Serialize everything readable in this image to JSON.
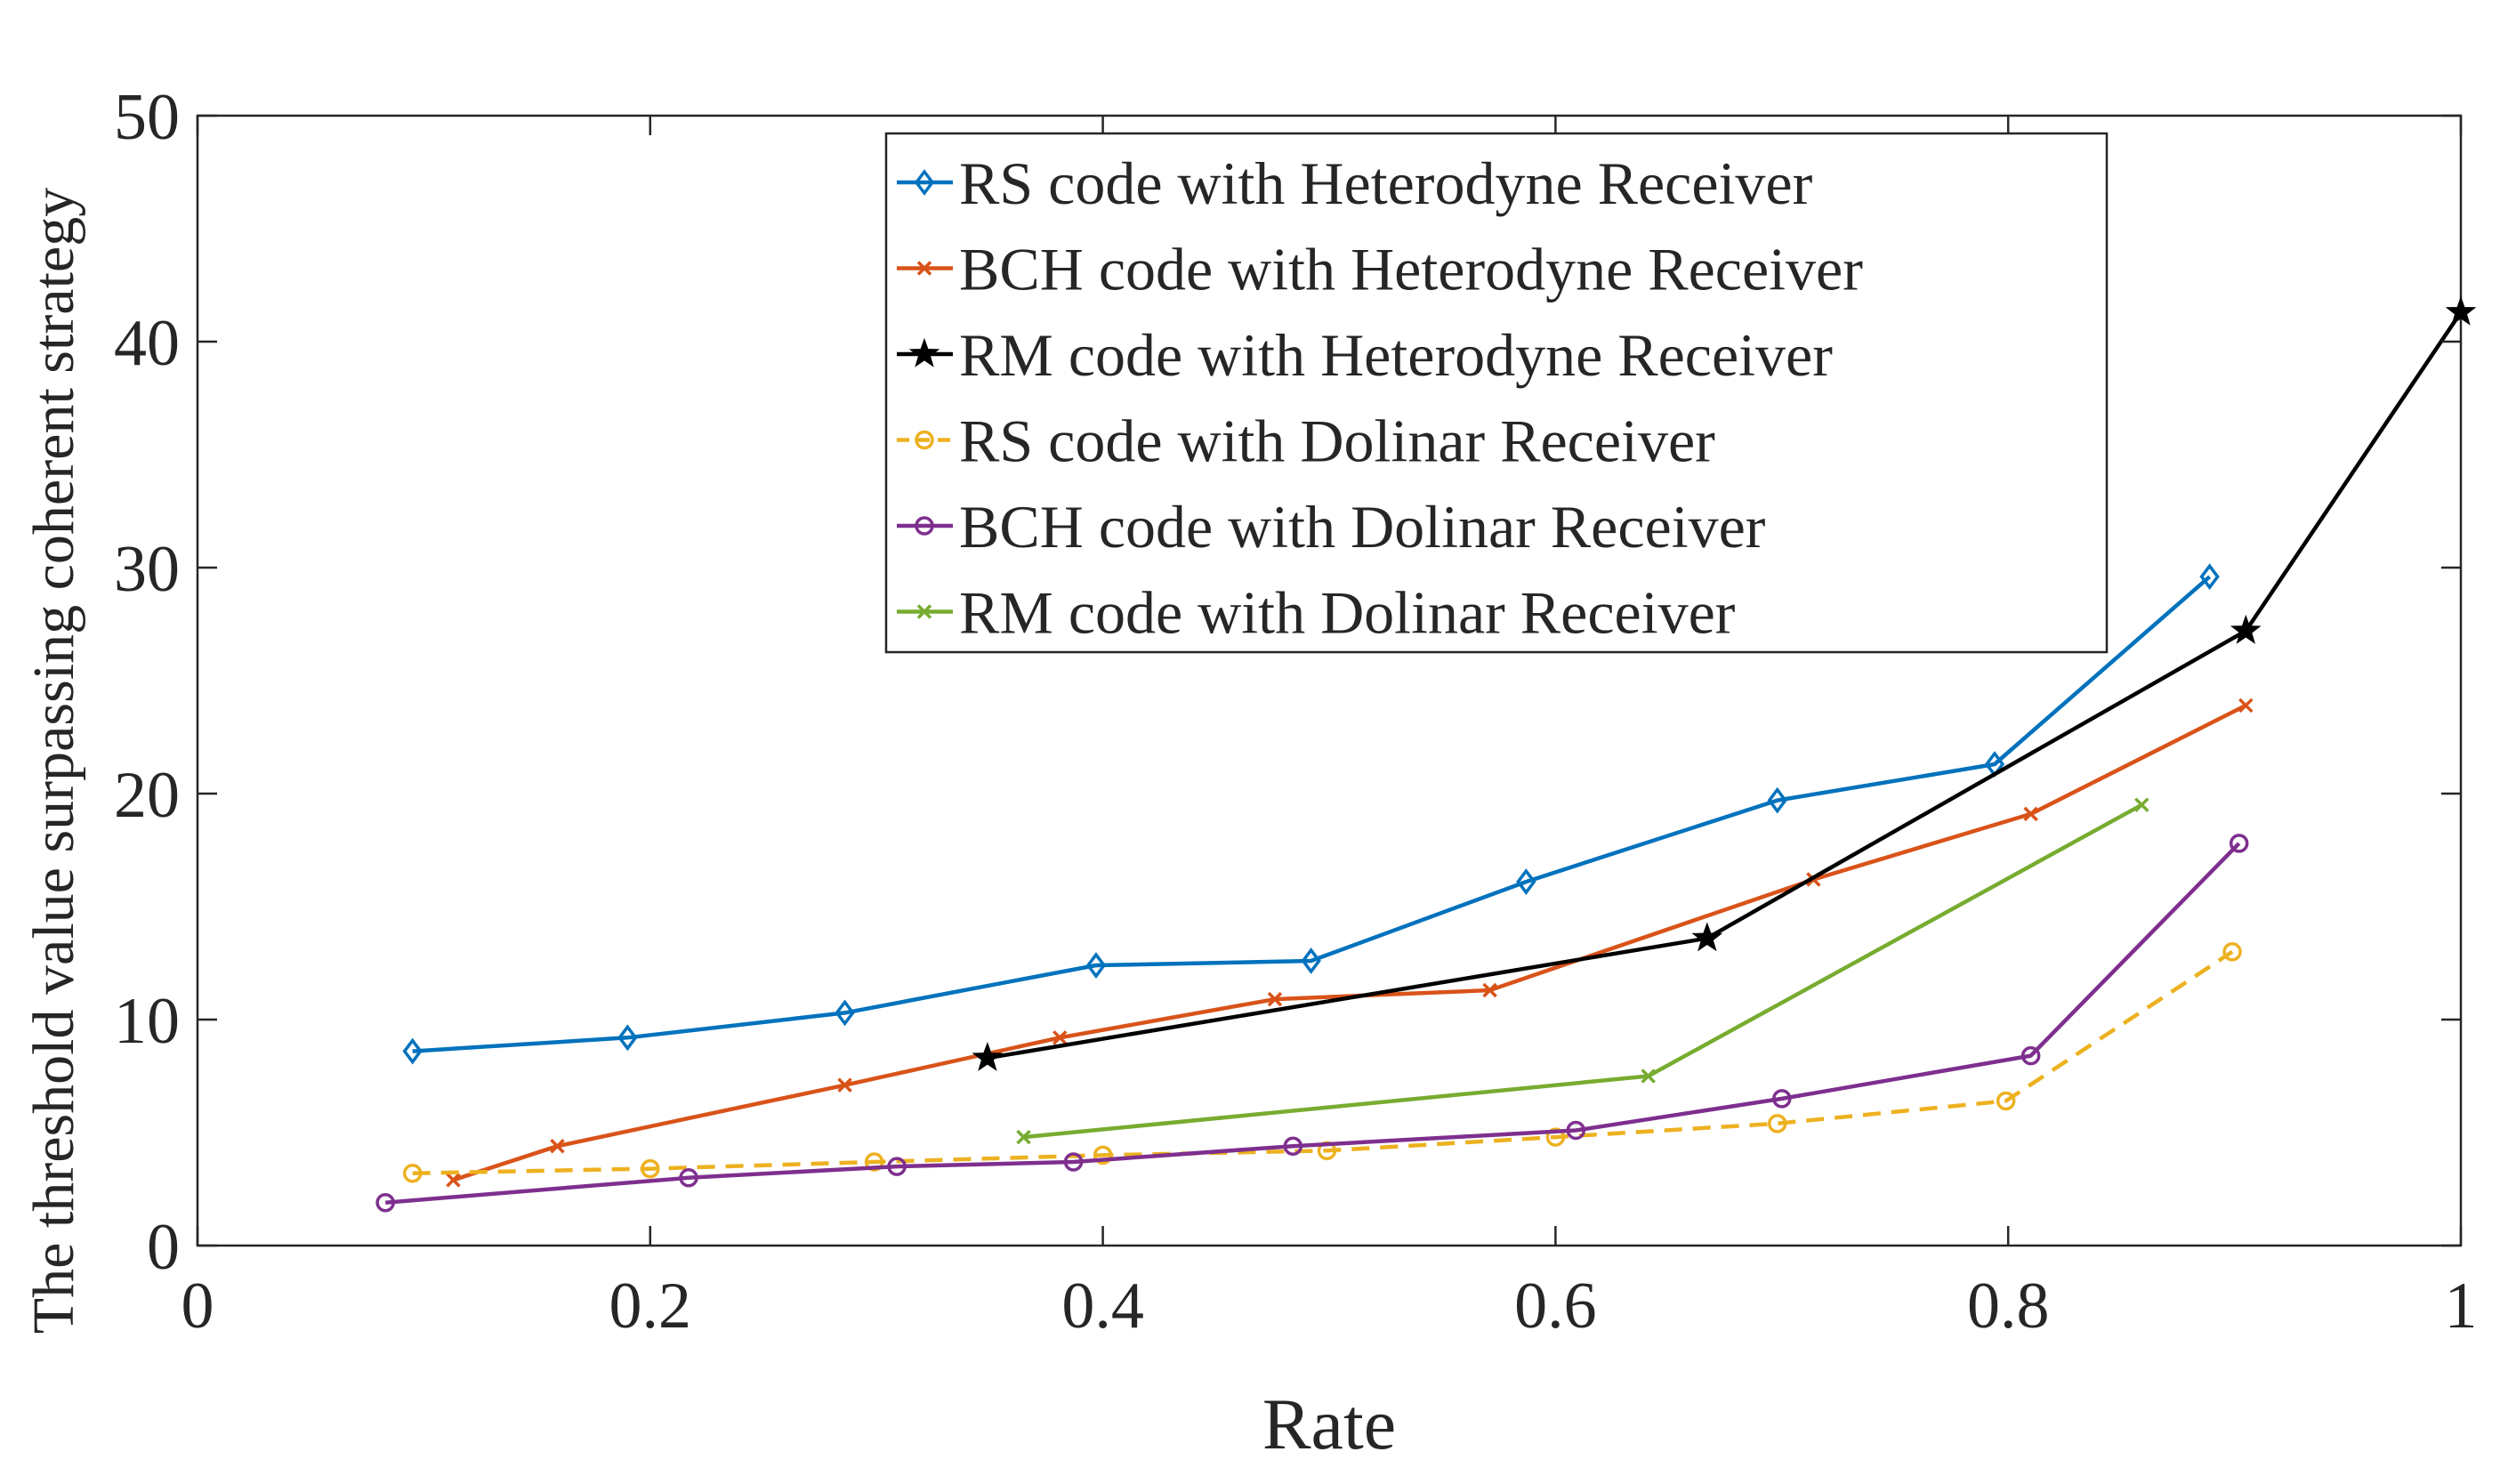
{
  "chart_data": {
    "type": "line",
    "title": "",
    "xlabel": "Rate",
    "ylabel": "The threshold value surpassing coherent strategy",
    "xlim": [
      0,
      1
    ],
    "ylim": [
      0,
      50
    ],
    "xticks": [
      0,
      0.2,
      0.4,
      0.6,
      0.8,
      1
    ],
    "xtick_labels": [
      "0",
      "0.2",
      "0.4",
      "0.6",
      "0.8",
      "1"
    ],
    "yticks": [
      0,
      10,
      20,
      30,
      40,
      50
    ],
    "ytick_labels": [
      "0",
      "10",
      "20",
      "30",
      "40",
      "50"
    ],
    "legend_position": "top-center",
    "series": [
      {
        "name": "RS code with Heterodyne Receiver",
        "color": "#0072BD",
        "marker": "diamond",
        "dash": "solid",
        "x": [
          0.095,
          0.19,
          0.286,
          0.397,
          0.492,
          0.587,
          0.698,
          0.794,
          0.889
        ],
        "y": [
          8.6,
          9.2,
          10.3,
          12.4,
          12.6,
          16.1,
          19.7,
          21.3,
          29.6
        ]
      },
      {
        "name": "BCH code with Heterodyne Receiver",
        "color": "#D95319",
        "marker": "x",
        "dash": "solid",
        "x": [
          0.113,
          0.159,
          0.286,
          0.381,
          0.476,
          0.571,
          0.714,
          0.81,
          0.905
        ],
        "y": [
          2.9,
          4.4,
          7.1,
          9.2,
          10.9,
          11.3,
          16.2,
          19.1,
          23.9
        ]
      },
      {
        "name": "RM code with Heterodyne Receiver",
        "color": "#000000",
        "marker": "star",
        "dash": "solid",
        "x": [
          0.349,
          0.667,
          0.905,
          1.0
        ],
        "y": [
          8.3,
          13.6,
          27.2,
          41.3
        ]
      },
      {
        "name": "RS code with Dolinar Receiver",
        "color": "#EDB120",
        "marker": "circle",
        "dash": "dashed",
        "x": [
          0.095,
          0.2,
          0.299,
          0.4,
          0.499,
          0.6,
          0.698,
          0.799,
          0.899
        ],
        "y": [
          3.2,
          3.4,
          3.7,
          4.0,
          4.2,
          4.8,
          5.4,
          6.4,
          13.0
        ]
      },
      {
        "name": "BCH code with Dolinar Receiver",
        "color": "#7E2F8E",
        "marker": "circle",
        "dash": "solid",
        "x": [
          0.083,
          0.217,
          0.309,
          0.387,
          0.484,
          0.609,
          0.7,
          0.81,
          0.902
        ],
        "y": [
          1.9,
          3.0,
          3.5,
          3.7,
          4.4,
          5.1,
          6.5,
          8.4,
          17.8
        ]
      },
      {
        "name": "RM code with Dolinar Receiver",
        "color": "#77AC30",
        "marker": "x",
        "dash": "solid",
        "x": [
          0.365,
          0.641,
          0.859
        ],
        "y": [
          4.8,
          7.5,
          19.5
        ]
      }
    ]
  }
}
